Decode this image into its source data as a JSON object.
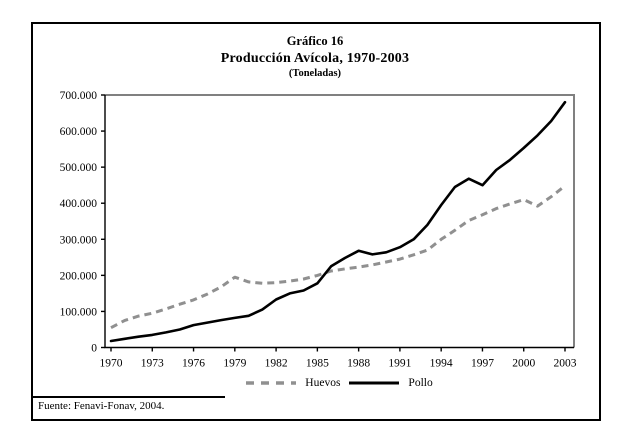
{
  "figure": {
    "title_line1": "Gráfico 16",
    "title_line2": "Producción Avícola, 1970-2003",
    "title_line3": "(Toneladas)",
    "source": "Fuente: Fenavi-Fonav, 2004."
  },
  "colors": {
    "frame_border": "#808080",
    "axis": "#000000",
    "huevos": "#909090",
    "pollo": "#000000"
  },
  "chart_data": {
    "type": "line",
    "title": "Gráfico 16 — Producción Avícola, 1970-2003 (Toneladas)",
    "xlabel": "",
    "ylabel": "Toneladas",
    "grid": false,
    "legend_position": "bottom",
    "xlim": [
      1970,
      2003
    ],
    "ylim": [
      0,
      700000
    ],
    "x": [
      1970,
      1971,
      1972,
      1973,
      1974,
      1975,
      1976,
      1977,
      1978,
      1979,
      1980,
      1981,
      1982,
      1983,
      1984,
      1985,
      1986,
      1987,
      1988,
      1989,
      1990,
      1991,
      1992,
      1993,
      1994,
      1995,
      1996,
      1997,
      1998,
      1999,
      2000,
      2001,
      2002,
      2003
    ],
    "x_tick_labels": [
      "1970",
      "1973",
      "1976",
      "1979",
      "1982",
      "1985",
      "1988",
      "1991",
      "1994",
      "1997",
      "2000",
      "2003"
    ],
    "x_tick_values": [
      1970,
      1973,
      1976,
      1979,
      1982,
      1985,
      1988,
      1991,
      1994,
      1997,
      2000,
      2003
    ],
    "y_tick_values": [
      0,
      100000,
      200000,
      300000,
      400000,
      500000,
      600000,
      700000
    ],
    "y_tick_labels": [
      "0",
      "100.000",
      "200.000",
      "300.000",
      "400.000",
      "500.000",
      "600.000",
      "700.000"
    ],
    "series": [
      {
        "name": "Huevos",
        "style": "dashed",
        "color": "#909090",
        "values": [
          55000,
          75000,
          87000,
          95000,
          107000,
          120000,
          132000,
          148000,
          168000,
          195000,
          182000,
          178000,
          180000,
          184000,
          190000,
          200000,
          212000,
          218000,
          223000,
          229000,
          237000,
          245000,
          257000,
          270000,
          300000,
          325000,
          352000,
          368000,
          385000,
          398000,
          410000,
          392000,
          418000,
          448000
        ]
      },
      {
        "name": "Pollo",
        "style": "solid",
        "color": "#000000",
        "values": [
          18000,
          24000,
          30000,
          35000,
          42000,
          50000,
          62000,
          69000,
          76000,
          82000,
          88000,
          105000,
          133000,
          150000,
          158000,
          178000,
          225000,
          248000,
          268000,
          258000,
          264000,
          278000,
          300000,
          340000,
          395000,
          445000,
          468000,
          450000,
          492000,
          520000,
          553000,
          588000,
          628000,
          680000
        ]
      }
    ]
  }
}
